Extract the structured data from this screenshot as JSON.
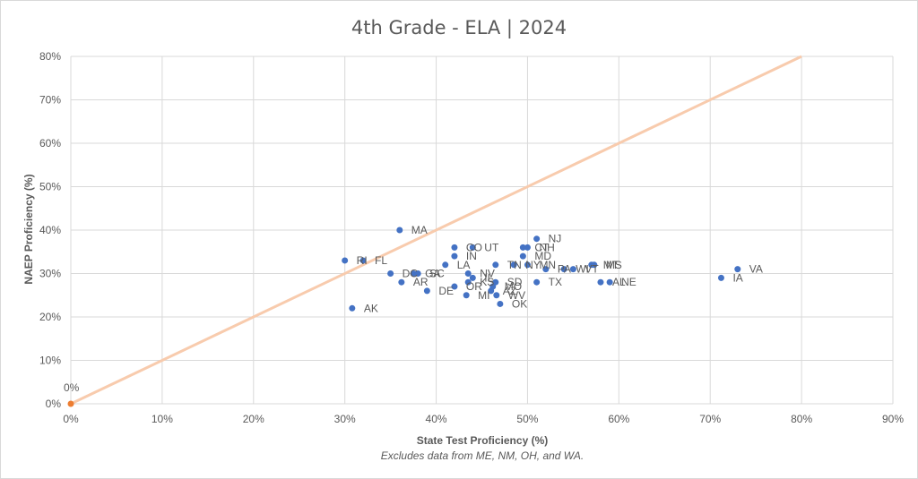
{
  "chart_data": {
    "type": "scatter",
    "title": "4th Grade - ELA | 2024",
    "xlabel": "State Test Proficiency (%)",
    "ylabel": "NAEP Proficiency (%)",
    "note": "Excludes data from ME, NM, OH, and WA.",
    "xlim": [
      0,
      90
    ],
    "ylim": [
      0,
      80
    ],
    "x_ticks": [
      "0%",
      "10%",
      "20%",
      "30%",
      "40%",
      "50%",
      "60%",
      "70%",
      "80%",
      "90%"
    ],
    "y_ticks": [
      "0%",
      "10%",
      "20%",
      "30%",
      "40%",
      "50%",
      "60%",
      "70%",
      "80%"
    ],
    "grid": true,
    "series": [
      {
        "color": "#4472c4",
        "points": [
          {
            "label": "MA",
            "x": 36,
            "y": 40
          },
          {
            "label": "NJ",
            "x": 51,
            "y": 38
          },
          {
            "label": "CO",
            "x": 42,
            "y": 36
          },
          {
            "label": "UT",
            "x": 44,
            "y": 36
          },
          {
            "label": "CT",
            "x": 49.5,
            "y": 36
          },
          {
            "label": "NH",
            "x": 50,
            "y": 36
          },
          {
            "label": "IN",
            "x": 42,
            "y": 34
          },
          {
            "label": "MD",
            "x": 49.5,
            "y": 34
          },
          {
            "label": "FL",
            "x": 32,
            "y": 33
          },
          {
            "label": "RI",
            "x": 30,
            "y": 33
          },
          {
            "label": "LA",
            "x": 41,
            "y": 32
          },
          {
            "label": "TN",
            "x": 46.5,
            "y": 32
          },
          {
            "label": "NY",
            "x": 48.5,
            "y": 32
          },
          {
            "label": "MN",
            "x": 50,
            "y": 32
          },
          {
            "label": "MT",
            "x": 57,
            "y": 32
          },
          {
            "label": "MS",
            "x": 57.3,
            "y": 32
          },
          {
            "label": "PA",
            "x": 52,
            "y": 31
          },
          {
            "label": "WI",
            "x": 54,
            "y": 31
          },
          {
            "label": "VT",
            "x": 55,
            "y": 31
          },
          {
            "label": "VA",
            "x": 73,
            "y": 31
          },
          {
            "label": "DC",
            "x": 35,
            "y": 30
          },
          {
            "label": "GA",
            "x": 37.5,
            "y": 30
          },
          {
            "label": "SC",
            "x": 38,
            "y": 30
          },
          {
            "label": "NV",
            "x": 43.5,
            "y": 30
          },
          {
            "label": "IL",
            "x": 44,
            "y": 29
          },
          {
            "label": "IA",
            "x": 71.2,
            "y": 29
          },
          {
            "label": "AR",
            "x": 36.2,
            "y": 28
          },
          {
            "label": "KS",
            "x": 43.5,
            "y": 28
          },
          {
            "label": "SD",
            "x": 46.5,
            "y": 28
          },
          {
            "label": "TX",
            "x": 51,
            "y": 28
          },
          {
            "label": "AL",
            "x": 58,
            "y": 28
          },
          {
            "label": "NE",
            "x": 59,
            "y": 28
          },
          {
            "label": "OR",
            "x": 42,
            "y": 27
          },
          {
            "label": "MO",
            "x": 46.2,
            "y": 27
          },
          {
            "label": "DE",
            "x": 39,
            "y": 26
          },
          {
            "label": "AZ",
            "x": 46,
            "y": 26
          },
          {
            "label": "MI",
            "x": 43.3,
            "y": 25
          },
          {
            "label": "WV",
            "x": 46.6,
            "y": 25
          },
          {
            "label": "OK",
            "x": 47,
            "y": 23
          },
          {
            "label": "AK",
            "x": 30.8,
            "y": 22
          }
        ]
      },
      {
        "color": "#ed7d31",
        "points": [
          {
            "label": "0%",
            "x": 0,
            "y": 0
          }
        ]
      }
    ],
    "reference_line": {
      "color": "#f8cbad",
      "from": [
        0,
        0
      ],
      "to": [
        80,
        80
      ]
    }
  }
}
